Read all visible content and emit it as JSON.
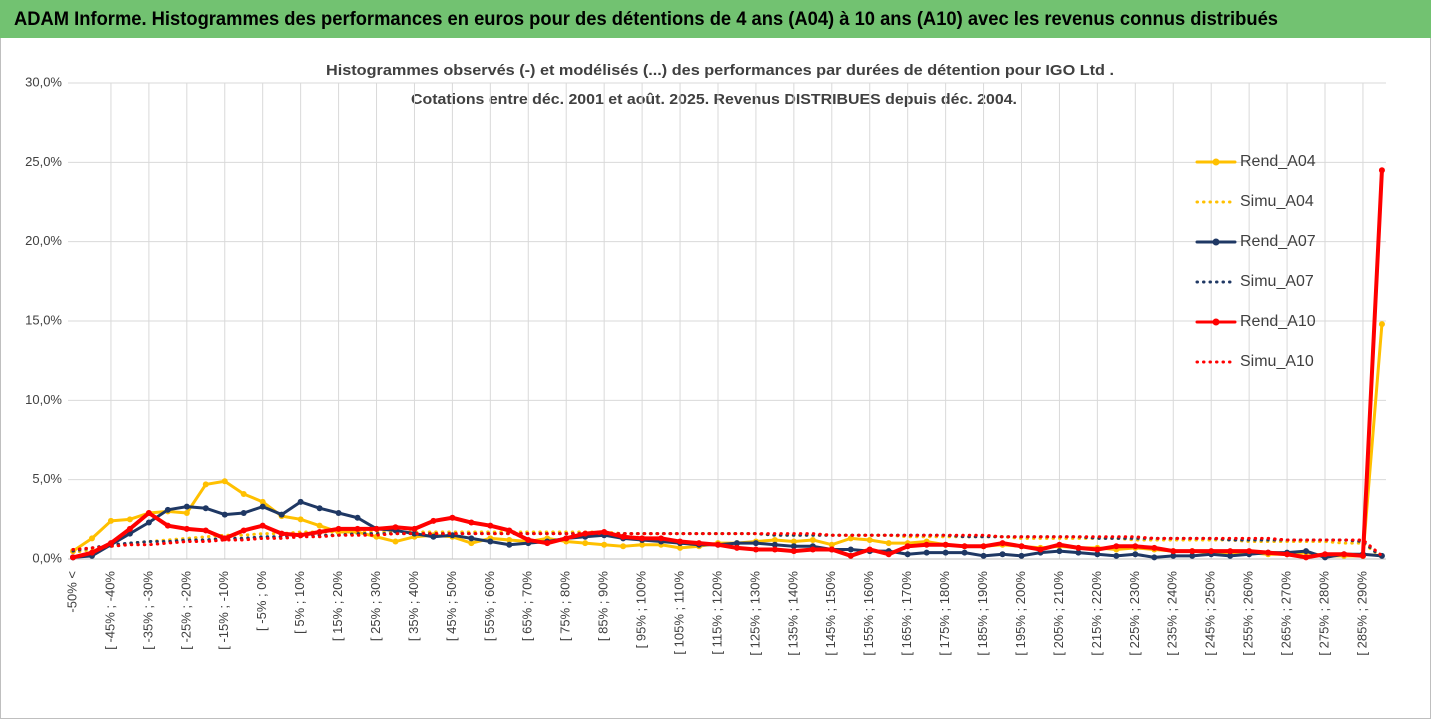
{
  "chart_data": {
    "type": "line",
    "title": "ADAM Informe. Histogrammes des performances en euros pour des détentions de 4 ans (A04) à 10 ans (A10) avec les revenus connus distribués",
    "subtitle": [
      "Histogrammes observés (-) et modélisés (...) des performances par durées de détention pour IGO Ltd .",
      "Cotations entre déc. 2001 et août. 2025.  Revenus DISTRIBUES depuis déc. 2004."
    ],
    "categories": [
      "-50% <",
      null,
      "[ -45% ; -40%",
      null,
      "[ -35% ; -30%",
      null,
      "[ -25% ; -20%",
      null,
      "[ -15% ; -10%",
      null,
      "[ -5% ; 0%",
      null,
      "[ 5% ; 10%",
      null,
      "[ 15% ; 20%",
      null,
      "[ 25% ; 30%",
      null,
      "[ 35% ; 40%",
      null,
      "[ 45% ; 50%",
      null,
      "[ 55% ; 60%",
      null,
      "[ 65% ; 70%",
      null,
      "[ 75% ; 80%",
      null,
      "[ 85% ; 90%",
      null,
      "[ 95% ; 100%",
      null,
      "[ 105% ; 110%",
      null,
      "[ 115% ; 120%",
      null,
      "[ 125% ; 130%",
      null,
      "[ 135% ; 140%",
      null,
      "[ 145% ; 150%",
      null,
      "[ 155% ; 160%",
      null,
      "[ 165% ; 170%",
      null,
      "[ 175% ; 180%",
      null,
      "[ 185% ; 190%",
      null,
      "[ 195% ; 200%",
      null,
      "[ 205% ; 210%",
      null,
      "[ 215% ; 220%",
      null,
      "[ 225% ; 230%",
      null,
      "[ 235% ; 240%",
      null,
      "[ 245% ; 250%",
      null,
      "[ 255% ; 260%",
      null,
      "[ 265% ; 270%",
      null,
      "[ 275% ; 280%",
      null,
      "[ 285% ; 290%",
      null
    ],
    "ylim": [
      0,
      30
    ],
    "yticks": [
      {
        "value": 0,
        "label": "0,0%"
      },
      {
        "value": 5,
        "label": "5,0%"
      },
      {
        "value": 10,
        "label": "10,0%"
      },
      {
        "value": 15,
        "label": "15,0%"
      },
      {
        "value": 20,
        "label": "20,0%"
      },
      {
        "value": 25,
        "label": "25,0%"
      },
      {
        "value": 30,
        "label": "30,0%"
      }
    ],
    "grid": true,
    "legend": "right",
    "series": [
      {
        "name": "Rend_A04",
        "color": "#ffc000",
        "line_style": "solid",
        "markers": true,
        "values": [
          0.5,
          1.3,
          2.4,
          2.5,
          2.9,
          3.0,
          2.9,
          4.7,
          4.9,
          4.1,
          3.6,
          2.7,
          2.5,
          2.1,
          1.7,
          1.7,
          1.4,
          1.1,
          1.4,
          1.5,
          1.4,
          1.0,
          1.3,
          1.2,
          1.1,
          1.3,
          1.1,
          1.0,
          0.9,
          0.8,
          0.9,
          0.9,
          0.7,
          0.8,
          1.0,
          1.0,
          1.1,
          1.2,
          1.1,
          1.2,
          0.9,
          1.3,
          1.2,
          1.0,
          1.0,
          1.1,
          0.9,
          0.8,
          0.8,
          0.9,
          0.8,
          0.7,
          0.8,
          0.7,
          0.7,
          0.6,
          0.7,
          0.6,
          0.5,
          0.5,
          0.4,
          0.4,
          0.4,
          0.3,
          0.3,
          0.4,
          0.2,
          0.2,
          0.2,
          14.8
        ]
      },
      {
        "name": "Simu_A04",
        "color": "#ffc000",
        "line_style": "dotted",
        "markers": false,
        "values": [
          0.4,
          0.6,
          0.8,
          1.0,
          1.1,
          1.2,
          1.3,
          1.4,
          1.5,
          1.5,
          1.6,
          1.6,
          1.7,
          1.7,
          1.7,
          1.7,
          1.7,
          1.7,
          1.7,
          1.7,
          1.7,
          1.7,
          1.7,
          1.7,
          1.7,
          1.7,
          1.7,
          1.7,
          1.7,
          1.6,
          1.6,
          1.6,
          1.6,
          1.6,
          1.6,
          1.6,
          1.6,
          1.5,
          1.5,
          1.5,
          1.5,
          1.5,
          1.5,
          1.5,
          1.4,
          1.4,
          1.4,
          1.4,
          1.4,
          1.4,
          1.3,
          1.3,
          1.3,
          1.3,
          1.3,
          1.3,
          1.2,
          1.2,
          1.2,
          1.2,
          1.2,
          1.2,
          1.1,
          1.1,
          1.1,
          1.1,
          1.1,
          1.0,
          1.0,
          0.1
        ]
      },
      {
        "name": "Rend_A07",
        "color": "#1f3864",
        "line_style": "solid",
        "markers": true,
        "values": [
          0.1,
          0.2,
          0.9,
          1.6,
          2.3,
          3.1,
          3.3,
          3.2,
          2.8,
          2.9,
          3.3,
          2.8,
          3.6,
          3.2,
          2.9,
          2.6,
          1.9,
          1.8,
          1.6,
          1.4,
          1.5,
          1.3,
          1.1,
          0.9,
          1.0,
          1.1,
          1.3,
          1.4,
          1.5,
          1.3,
          1.2,
          1.1,
          1.0,
          0.9,
          0.9,
          1.0,
          1.0,
          0.9,
          0.8,
          0.8,
          0.6,
          0.6,
          0.5,
          0.5,
          0.3,
          0.4,
          0.4,
          0.4,
          0.2,
          0.3,
          0.2,
          0.4,
          0.5,
          0.4,
          0.3,
          0.2,
          0.3,
          0.1,
          0.2,
          0.2,
          0.3,
          0.2,
          0.3,
          0.4,
          0.4,
          0.5,
          0.1,
          0.3,
          0.3,
          0.2
        ]
      },
      {
        "name": "Simu_A07",
        "color": "#1f3864",
        "line_style": "dotted",
        "markers": false,
        "values": [
          0.5,
          0.7,
          0.9,
          1.0,
          1.1,
          1.1,
          1.2,
          1.2,
          1.3,
          1.3,
          1.4,
          1.4,
          1.5,
          1.5,
          1.5,
          1.6,
          1.6,
          1.6,
          1.6,
          1.6,
          1.6,
          1.6,
          1.6,
          1.6,
          1.6,
          1.6,
          1.6,
          1.6,
          1.6,
          1.6,
          1.6,
          1.6,
          1.6,
          1.6,
          1.6,
          1.6,
          1.6,
          1.5,
          1.5,
          1.5,
          1.5,
          1.5,
          1.5,
          1.5,
          1.5,
          1.5,
          1.5,
          1.4,
          1.4,
          1.4,
          1.4,
          1.4,
          1.4,
          1.4,
          1.3,
          1.3,
          1.3,
          1.3,
          1.3,
          1.3,
          1.3,
          1.2,
          1.2,
          1.2,
          1.2,
          1.2,
          1.2,
          1.2,
          1.1,
          0.1
        ]
      },
      {
        "name": "Rend_A10",
        "color": "#ff0000",
        "line_style": "solid",
        "markers": true,
        "values": [
          0.1,
          0.4,
          1.0,
          1.9,
          2.9,
          2.1,
          1.9,
          1.8,
          1.3,
          1.8,
          2.1,
          1.6,
          1.5,
          1.7,
          1.9,
          1.9,
          1.9,
          2.0,
          1.9,
          2.4,
          2.6,
          2.3,
          2.1,
          1.8,
          1.2,
          1.0,
          1.3,
          1.6,
          1.7,
          1.4,
          1.3,
          1.3,
          1.1,
          1.0,
          0.9,
          0.7,
          0.6,
          0.6,
          0.5,
          0.6,
          0.6,
          0.2,
          0.6,
          0.3,
          0.8,
          0.9,
          0.9,
          0.8,
          0.8,
          1.0,
          0.8,
          0.6,
          0.9,
          0.7,
          0.6,
          0.8,
          0.8,
          0.7,
          0.5,
          0.5,
          0.5,
          0.5,
          0.5,
          0.4,
          0.3,
          0.1,
          0.3,
          0.3,
          0.2,
          24.5
        ]
      },
      {
        "name": "Simu_A10",
        "color": "#ff0000",
        "line_style": "dotted",
        "markers": false,
        "values": [
          0.6,
          0.7,
          0.8,
          0.9,
          0.9,
          1.0,
          1.1,
          1.1,
          1.2,
          1.2,
          1.3,
          1.3,
          1.4,
          1.4,
          1.5,
          1.5,
          1.5,
          1.6,
          1.6,
          1.6,
          1.6,
          1.6,
          1.6,
          1.6,
          1.6,
          1.6,
          1.6,
          1.6,
          1.6,
          1.6,
          1.6,
          1.6,
          1.6,
          1.6,
          1.6,
          1.6,
          1.6,
          1.6,
          1.6,
          1.6,
          1.5,
          1.5,
          1.5,
          1.5,
          1.5,
          1.5,
          1.5,
          1.5,
          1.5,
          1.4,
          1.4,
          1.4,
          1.4,
          1.4,
          1.4,
          1.4,
          1.4,
          1.3,
          1.3,
          1.3,
          1.3,
          1.3,
          1.3,
          1.3,
          1.2,
          1.2,
          1.2,
          1.2,
          1.2,
          0.2
        ]
      }
    ]
  }
}
